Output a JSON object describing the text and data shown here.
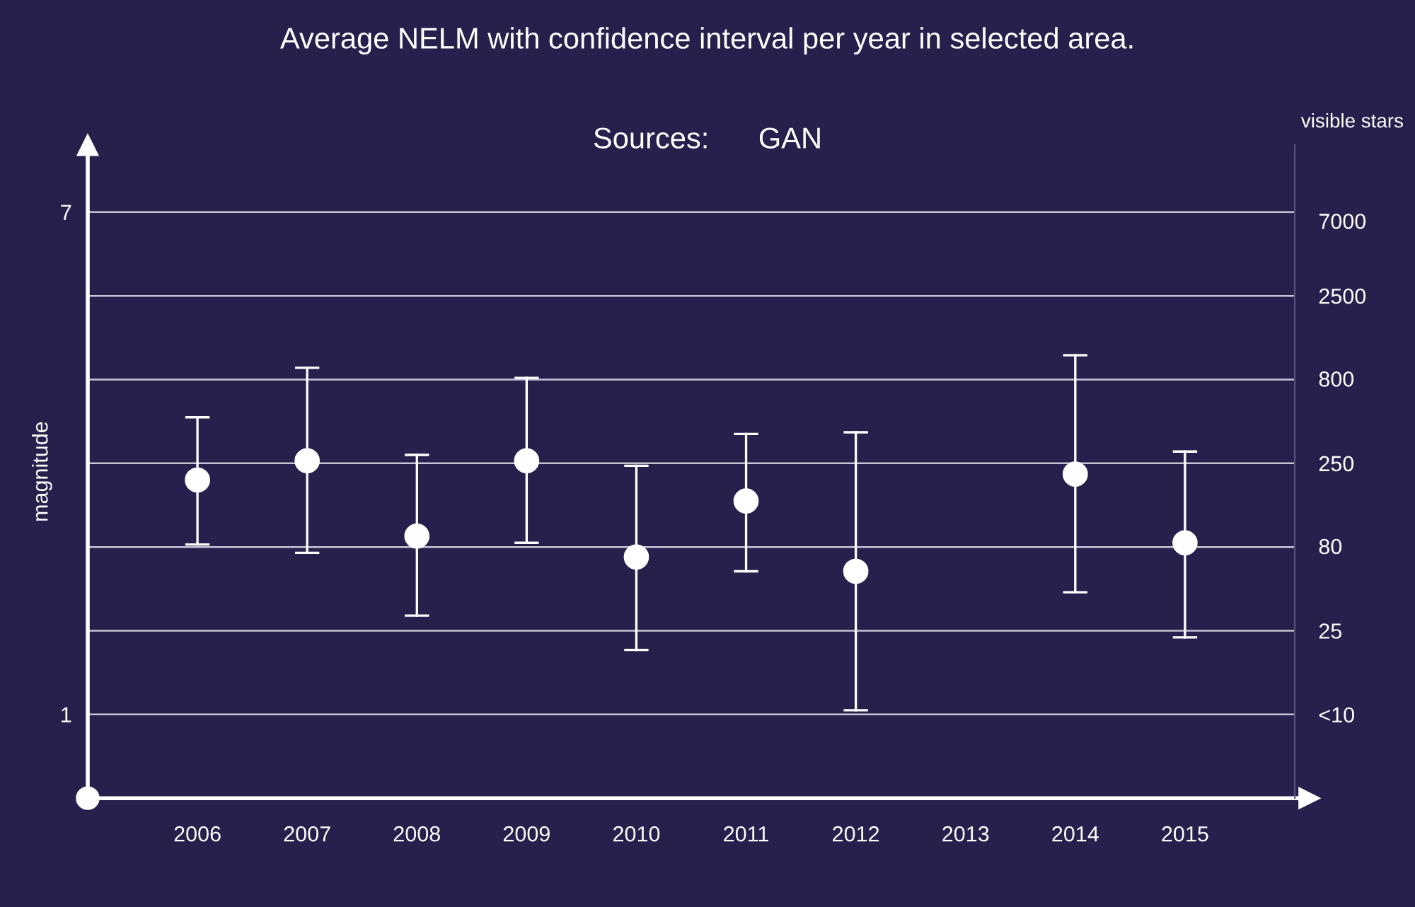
{
  "chart_data": {
    "type": "scatter",
    "title": "Average NELM with confidence interval per year in selected area.",
    "subtitle": "Sources:      GAN",
    "ylabel": "magnitude",
    "y2label": "visible stars",
    "categories": [
      "2006",
      "2007",
      "2008",
      "2009",
      "2010",
      "2011",
      "2012",
      "2013",
      "2014",
      "2015"
    ],
    "series": [
      {
        "color": "#ffffff",
        "values": [
          3.8,
          4.03,
          3.13,
          4.03,
          2.88,
          3.55,
          2.71,
          null,
          3.87,
          3.05
        ],
        "errors": [
          [
            3.03,
            4.55
          ],
          [
            2.93,
            5.14
          ],
          [
            2.18,
            4.1
          ],
          [
            3.05,
            5.02
          ],
          [
            1.77,
            3.97
          ],
          [
            2.71,
            4.35
          ],
          [
            1.05,
            4.37
          ],
          null,
          [
            2.46,
            5.29
          ],
          [
            1.92,
            4.14
          ]
        ]
      }
    ],
    "ylim": [
      0,
      7.8
    ],
    "yticks": [
      {
        "value": 1,
        "label": "1"
      },
      {
        "value": 2,
        "label": null
      },
      {
        "value": 3,
        "label": null
      },
      {
        "value": 4,
        "label": null
      },
      {
        "value": 5,
        "label": null
      },
      {
        "value": 6,
        "label": null
      },
      {
        "value": 7,
        "label": "7"
      }
    ],
    "log": "y2",
    "y2lim": [
      2.5,
      19860
    ],
    "y2ticks": [
      {
        "value": 7.9,
        "label": "<10"
      },
      25,
      80,
      250,
      800,
      2500,
      7000
    ],
    "grid": "y",
    "marker": "circle",
    "legend": false
  }
}
